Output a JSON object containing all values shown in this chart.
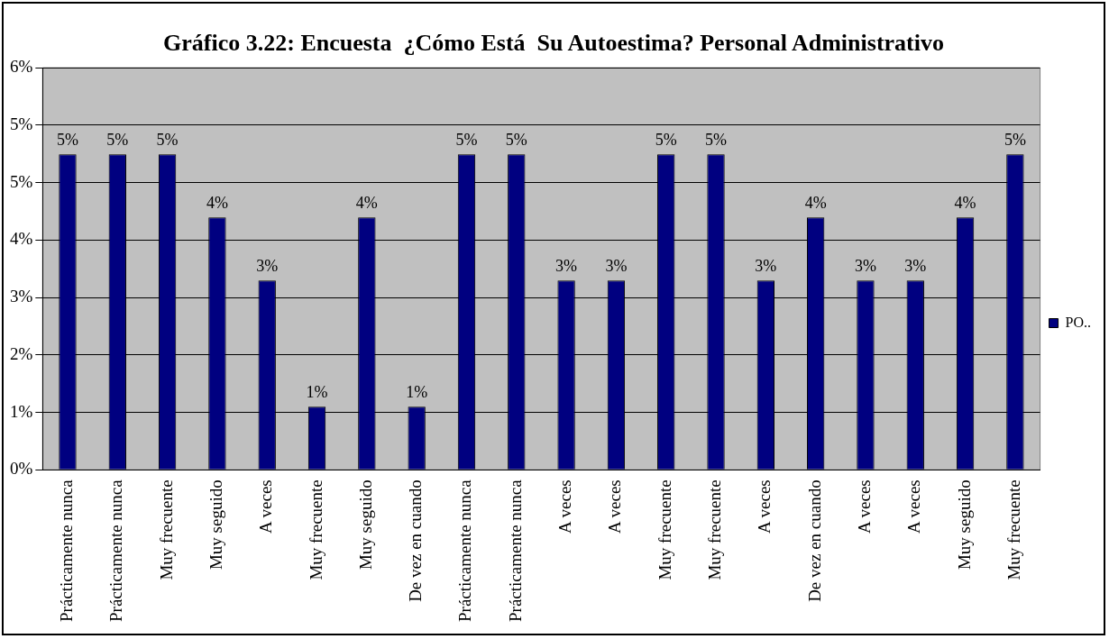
{
  "chart_data": {
    "type": "bar",
    "title": "Gráfico 3.22: Encuesta  ¿Cómo Está  Su Autoestima? Personal Administrativo",
    "categories": [
      "Prácticamente nunca",
      "Prácticamente nunca",
      "Muy frecuente",
      "Muy seguido",
      "A veces",
      "Muy frecuente",
      "Muy seguido",
      "De vez en cuando",
      "Prácticamente nunca",
      "Prácticamente nunca",
      "A veces",
      "A veces",
      "Muy frecuente",
      "Muy frecuente",
      "A veces",
      "De vez en cuando",
      "A veces",
      "A veces",
      "Muy seguido",
      "Muy frecuente"
    ],
    "series": [
      {
        "name": "PO..",
        "color": "#000080",
        "values": [
          5,
          5,
          5,
          4,
          3,
          1,
          4,
          1,
          5,
          5,
          3,
          3,
          5,
          5,
          3,
          4,
          3,
          3,
          4,
          5
        ],
        "value_labels": [
          "5%",
          "5%",
          "5%",
          "4%",
          "3%",
          "1%",
          "4%",
          "1%",
          "5%",
          "5%",
          "3%",
          "3%",
          "5%",
          "5%",
          "3%",
          "4%",
          "3%",
          "3%",
          "4%",
          "5%"
        ]
      }
    ],
    "ylim": [
      0,
      6.37
    ],
    "yticks": [
      {
        "value": 0,
        "label": "0%"
      },
      {
        "value": 0.91,
        "label": "1%"
      },
      {
        "value": 1.82,
        "label": "2%"
      },
      {
        "value": 2.73,
        "label": "3%"
      },
      {
        "value": 3.64,
        "label": "4%"
      },
      {
        "value": 4.55,
        "label": "5%"
      },
      {
        "value": 5.46,
        "label": "5%"
      },
      {
        "value": 6.37,
        "label": "6%"
      }
    ],
    "grid": "y",
    "legend": "right"
  }
}
